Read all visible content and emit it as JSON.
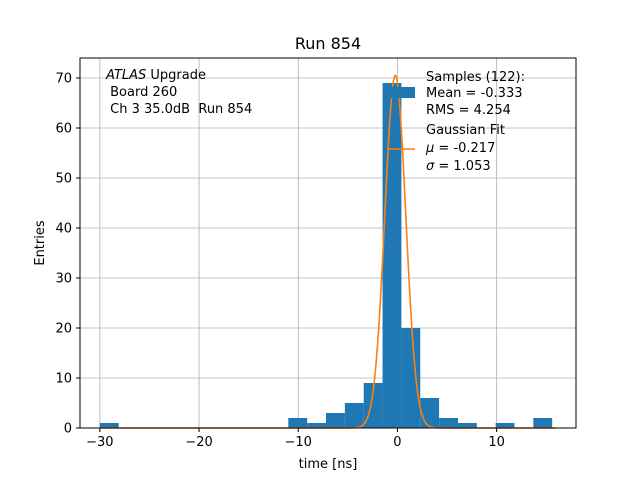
{
  "chart_data": {
    "type": "bar",
    "title": "Run 854",
    "xlabel": "time [ns]",
    "ylabel": "Entries",
    "xlim": [
      -32,
      18
    ],
    "ylim": [
      0,
      74
    ],
    "grid": true,
    "x_ticks": [
      -30,
      -20,
      -10,
      0,
      10
    ],
    "x_tick_labels": [
      "−30",
      "−20",
      "−10",
      "0",
      "10"
    ],
    "y_ticks": [
      0,
      10,
      20,
      30,
      40,
      50,
      60,
      70
    ],
    "y_tick_labels": [
      "0",
      "10",
      "20",
      "30",
      "40",
      "50",
      "60",
      "70"
    ],
    "annotation": {
      "italic_part": "ATLAS",
      "normal_part": " Upgrade",
      "line2": " Board 260",
      "line3": " Ch 3 35.0dB  Run 854"
    },
    "histogram": {
      "name": "Samples (122):",
      "color": "#1f77b4",
      "bins": [
        {
          "x0": -30.0,
          "x1": -28.1,
          "count": 1
        },
        {
          "x0": -11.0,
          "x1": -9.1,
          "count": 2
        },
        {
          "x0": -9.1,
          "x1": -7.2,
          "count": 1
        },
        {
          "x0": -7.2,
          "x1": -5.3,
          "count": 3
        },
        {
          "x0": -5.3,
          "x1": -3.4,
          "count": 5
        },
        {
          "x0": -3.4,
          "x1": -1.5,
          "count": 9
        },
        {
          "x0": -1.5,
          "x1": 0.4,
          "count": 69
        },
        {
          "x0": 0.4,
          "x1": 2.3,
          "count": 20
        },
        {
          "x0": 2.3,
          "x1": 4.2,
          "count": 6
        },
        {
          "x0": 4.2,
          "x1": 6.1,
          "count": 2
        },
        {
          "x0": 6.1,
          "x1": 8.0,
          "count": 1
        },
        {
          "x0": 9.9,
          "x1": 11.8,
          "count": 1
        },
        {
          "x0": 13.7,
          "x1": 15.6,
          "count": 2
        }
      ]
    },
    "fit": {
      "name": "Gaussian Fit",
      "color": "#ff7f0e",
      "mu": -0.217,
      "sigma": 1.053,
      "amplitude": 70.5,
      "x_range": [
        -30,
        16
      ]
    },
    "legend": {
      "position": "top-right",
      "samples_label": "Samples (122):",
      "samples_mean": "Mean = -0.333",
      "samples_rms": "RMS = 4.254",
      "fit_label": "Gaussian Fit",
      "fit_mu_symbol": "μ",
      "fit_mu_value": " = -0.217",
      "fit_sigma_symbol": "σ",
      "fit_sigma_value": " = 1.053"
    }
  }
}
